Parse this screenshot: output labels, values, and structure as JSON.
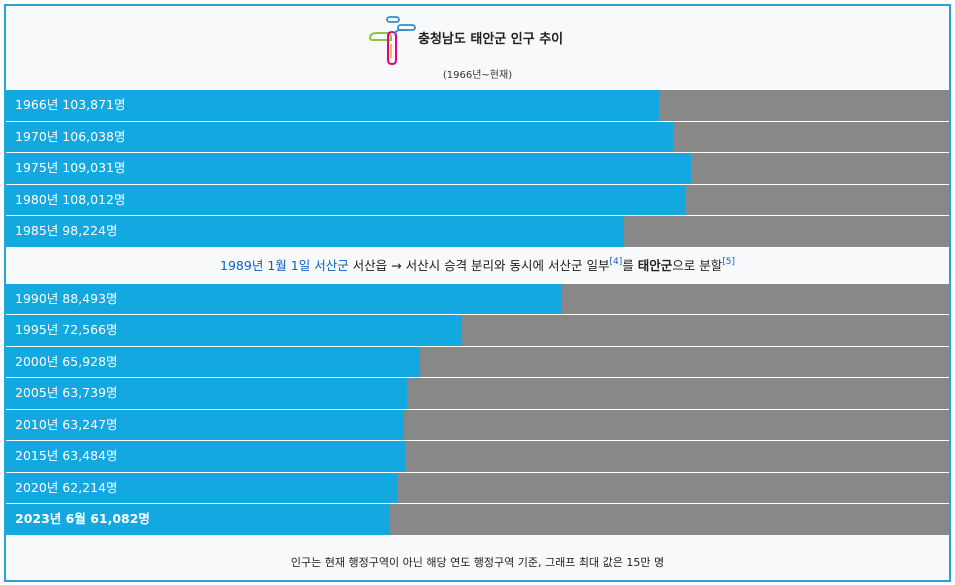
{
  "colors": {
    "bar": "#13a9e0",
    "track": "#888888",
    "frame": "#29a3d6",
    "link": "#0b62c4"
  },
  "header": {
    "logo_icon": "taean-county-logo-icon",
    "title": "충청남도 태안군 인구 추이",
    "subtitle": "(1966년~현재)"
  },
  "note": {
    "date_link": "1989년 1월 1일",
    "county_link": "서산군",
    "text1": " 서산읍 → 서산시 승격 분리와 동시에 서산군 일부",
    "ref1": "[4]",
    "text2": "를 ",
    "bold": "태안군",
    "text3": "으로 분할",
    "ref2": "[5]"
  },
  "footer": {
    "text": "인구는 현재 행정구역이 아닌 해당 연도 행정구역 기준, 그래프 최대 값은 15만 명"
  },
  "chart_data": {
    "type": "bar",
    "orientation": "horizontal",
    "title": "충청남도 태안군 인구 추이",
    "subtitle": "(1966년~현재)",
    "xlim": [
      0,
      150000
    ],
    "categories": [
      "1966년",
      "1970년",
      "1975년",
      "1980년",
      "1985년",
      "1990년",
      "1995년",
      "2000년",
      "2005년",
      "2010년",
      "2015년",
      "2020년",
      "2023년 6월"
    ],
    "values": [
      103871,
      106038,
      109031,
      108012,
      98224,
      88493,
      72566,
      65928,
      63739,
      63247,
      63484,
      62214,
      61082
    ],
    "labels": [
      "1966년 103,871명",
      "1970년 106,038명",
      "1975년 109,031명",
      "1980년 108,012명",
      "1985년 98,224명",
      "1990년 88,493명",
      "1995년 72,566명",
      "2000년 65,928명",
      "2005년 63,739명",
      "2010년 63,247명",
      "2015년 63,484명",
      "2020년 62,214명",
      "2023년 6월 61,082명"
    ],
    "bold_last": true,
    "note_after_index": 4
  }
}
